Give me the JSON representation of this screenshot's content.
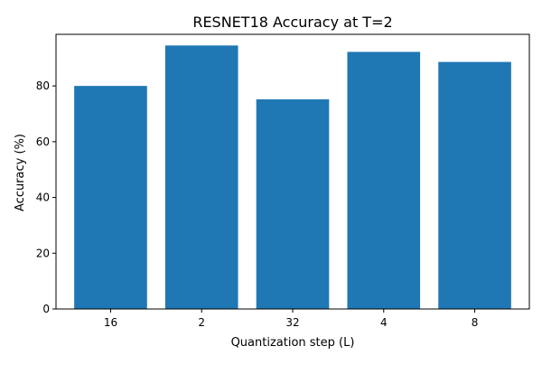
{
  "chart_data": {
    "type": "bar",
    "title": "RESNET18 Accuracy at T=2",
    "xlabel": "Quantization step (L)",
    "ylabel": "Accuracy (%)",
    "categories": [
      "16",
      "2",
      "32",
      "4",
      "8"
    ],
    "values": [
      80.0,
      94.5,
      75.2,
      92.2,
      88.6
    ],
    "ylim": [
      0,
      98.5
    ],
    "yticks": [
      0,
      20,
      40,
      60,
      80
    ],
    "grid": false,
    "bar_color": "#1f77b4"
  }
}
